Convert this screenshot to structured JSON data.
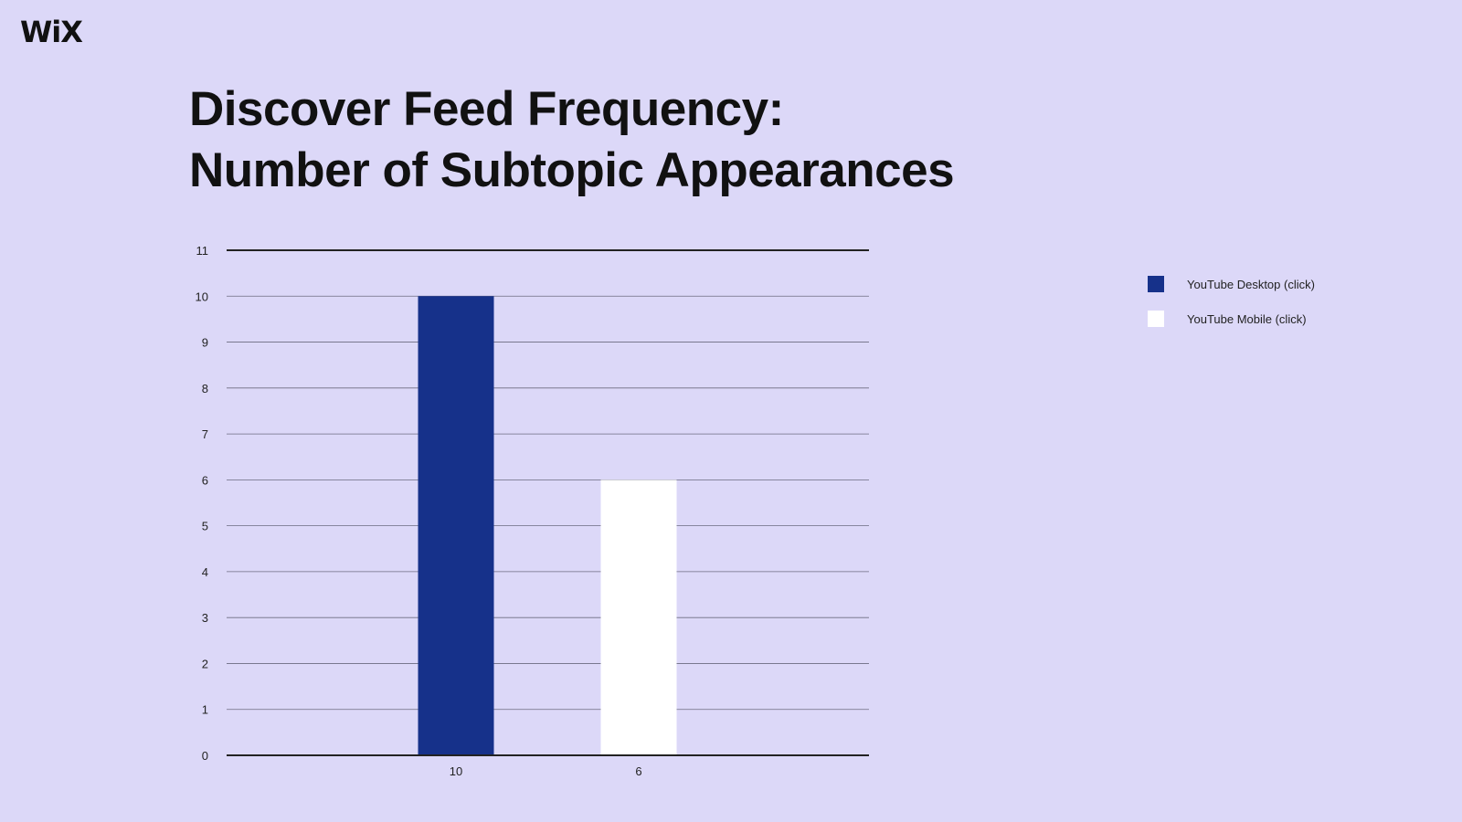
{
  "logo": {
    "text": "WiX"
  },
  "title": {
    "line1": "Discover Feed Frequency:",
    "line2": "Number of Subtopic Appearances"
  },
  "colors": {
    "background": "#dcd8f8",
    "desktop": "#16318a",
    "mobile": "#ffffff",
    "grid": "#6b6b80",
    "axis": "#222222"
  },
  "chart_data": {
    "type": "bar",
    "categories": [
      "10",
      "6"
    ],
    "series": [
      {
        "name": "YouTube Desktop (click)",
        "values": [
          10,
          null
        ],
        "color": "#16318a"
      },
      {
        "name": "YouTube Mobile (click)",
        "values": [
          null,
          6
        ],
        "color": "#ffffff"
      }
    ],
    "y_ticks": [
      "0",
      "1",
      "2",
      "3",
      "4",
      "5",
      "6",
      "7",
      "8",
      "9",
      "10",
      "11"
    ],
    "ylim": [
      0,
      11
    ],
    "grid": true,
    "legend_position": "right"
  },
  "legend": {
    "items": [
      {
        "label": "YouTube Desktop (click)",
        "color": "#16318a"
      },
      {
        "label": "YouTube Mobile (click)",
        "color": "#ffffff"
      }
    ]
  }
}
